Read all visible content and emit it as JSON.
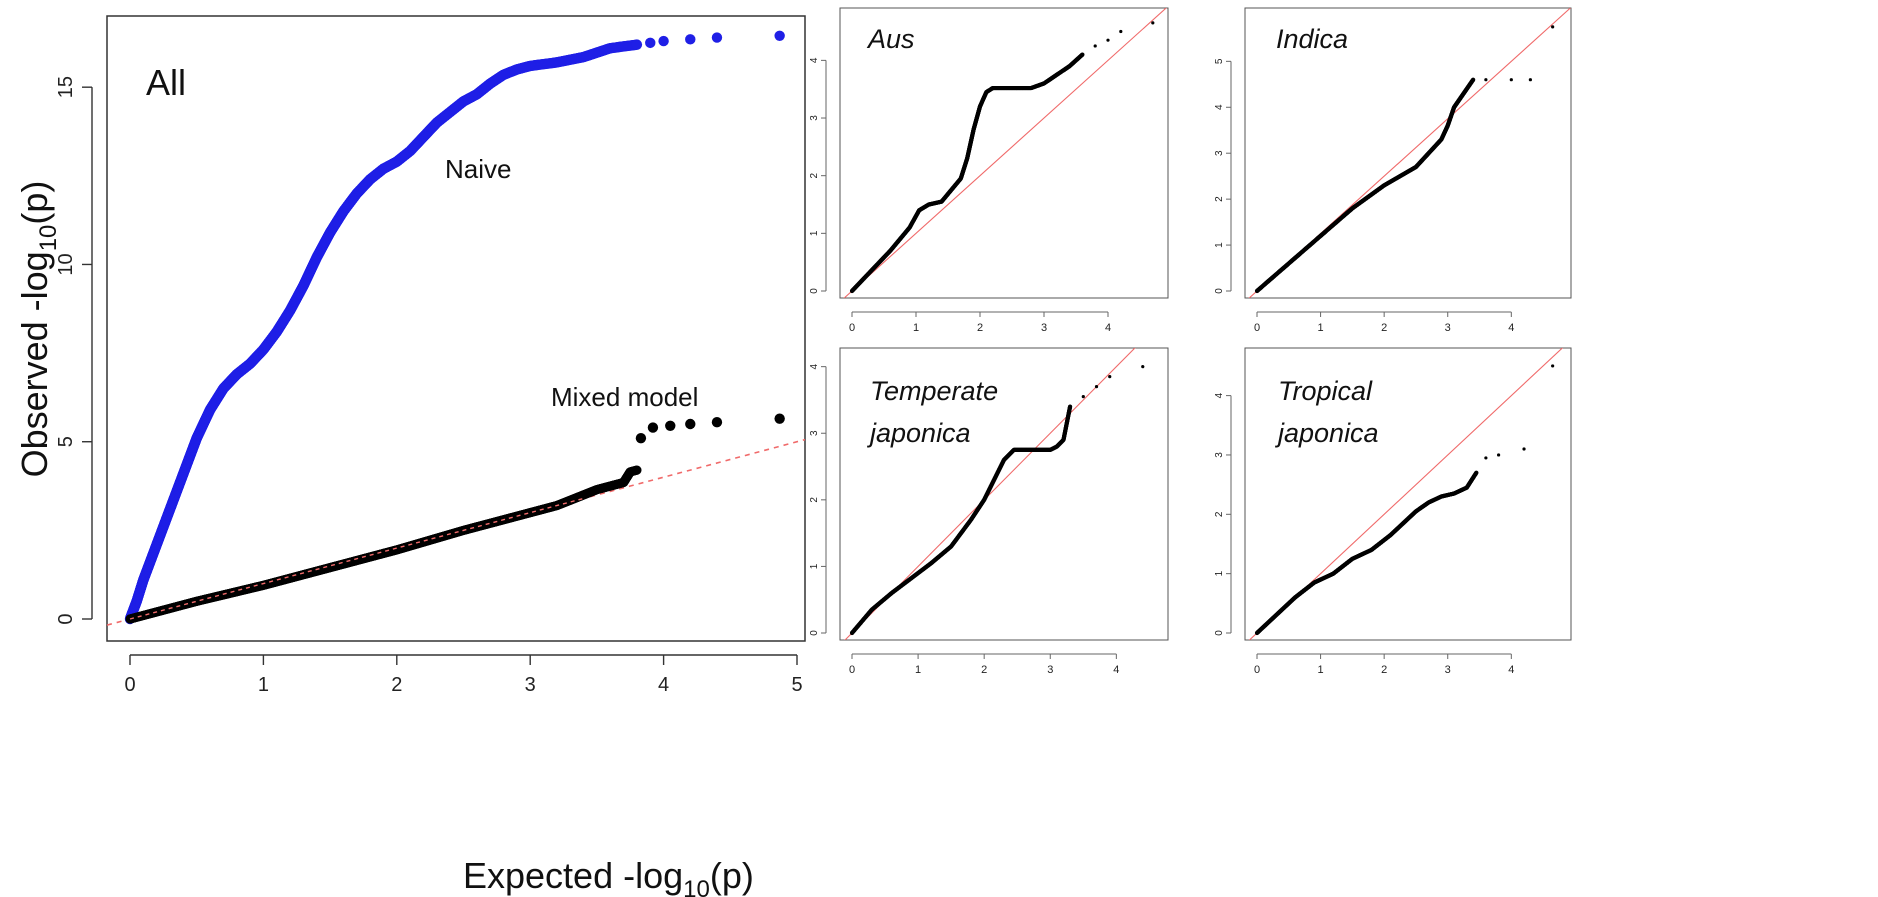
{
  "axis_titles": {
    "x_prefix": "Expected -log",
    "y_prefix": "Observed -log",
    "subscript": "10",
    "suffix": "(p)"
  },
  "colors": {
    "naive": "#1f1fe6",
    "mixed": "#000000",
    "reference_line": "#f06a6a",
    "frame": "#333333"
  },
  "chart_data": [
    {
      "type": "scatter",
      "panel": "main",
      "panel_label": "All",
      "xlim": [
        0,
        5
      ],
      "ylim": [
        0,
        16.5
      ],
      "x_ticks": [
        0,
        1,
        2,
        3,
        4,
        5
      ],
      "y_ticks": [
        0,
        5,
        10,
        15
      ],
      "reference_line": {
        "style": "dashed",
        "slope": 1
      },
      "annotations": [
        "Naive",
        "Mixed model"
      ],
      "series": [
        {
          "name": "Naive",
          "points": [
            [
              0,
              0
            ],
            [
              0.05,
              0.5
            ],
            [
              0.1,
              1.1
            ],
            [
              0.2,
              2.1
            ],
            [
              0.3,
              3.1
            ],
            [
              0.4,
              4.1
            ],
            [
              0.5,
              5.1
            ],
            [
              0.6,
              5.9
            ],
            [
              0.7,
              6.5
            ],
            [
              0.8,
              6.9
            ],
            [
              0.9,
              7.2
            ],
            [
              1.0,
              7.6
            ],
            [
              1.1,
              8.1
            ],
            [
              1.2,
              8.7
            ],
            [
              1.3,
              9.4
            ],
            [
              1.4,
              10.2
            ],
            [
              1.5,
              10.9
            ],
            [
              1.6,
              11.5
            ],
            [
              1.7,
              12.0
            ],
            [
              1.8,
              12.4
            ],
            [
              1.9,
              12.7
            ],
            [
              2.0,
              12.9
            ],
            [
              2.1,
              13.2
            ],
            [
              2.2,
              13.6
            ],
            [
              2.3,
              14.0
            ],
            [
              2.4,
              14.3
            ],
            [
              2.5,
              14.6
            ],
            [
              2.6,
              14.8
            ],
            [
              2.7,
              15.1
            ],
            [
              2.8,
              15.35
            ],
            [
              2.9,
              15.5
            ],
            [
              3.0,
              15.6
            ],
            [
              3.2,
              15.7
            ],
            [
              3.4,
              15.85
            ],
            [
              3.6,
              16.1
            ],
            [
              3.8,
              16.2
            ],
            [
              3.9,
              16.25
            ],
            [
              4.0,
              16.3
            ],
            [
              4.2,
              16.35
            ],
            [
              4.4,
              16.4
            ],
            [
              4.87,
              16.45
            ]
          ]
        },
        {
          "name": "Mixed model",
          "points": [
            [
              0,
              0
            ],
            [
              0.2,
              0.2
            ],
            [
              0.5,
              0.5
            ],
            [
              1.0,
              0.95
            ],
            [
              1.5,
              1.45
            ],
            [
              2.0,
              1.95
            ],
            [
              2.5,
              2.5
            ],
            [
              3.0,
              3.0
            ],
            [
              3.2,
              3.2
            ],
            [
              3.4,
              3.5
            ],
            [
              3.5,
              3.65
            ],
            [
              3.6,
              3.75
            ],
            [
              3.7,
              3.85
            ],
            [
              3.75,
              4.15
            ],
            [
              3.8,
              4.2
            ],
            [
              3.83,
              5.1
            ],
            [
              3.92,
              5.4
            ],
            [
              4.05,
              5.45
            ],
            [
              4.2,
              5.5
            ],
            [
              4.4,
              5.55
            ],
            [
              4.87,
              5.65
            ]
          ]
        }
      ]
    },
    {
      "type": "scatter",
      "panel": "Aus",
      "panel_label": "Aus",
      "xlim": [
        0,
        4.75
      ],
      "ylim": [
        0,
        4.7
      ],
      "x_ticks": [
        0,
        1,
        2,
        3,
        4
      ],
      "y_ticks": [
        0,
        1,
        2,
        3,
        4
      ],
      "reference_line": {
        "style": "solid",
        "slope": 1
      },
      "points": [
        [
          0,
          0
        ],
        [
          0.3,
          0.35
        ],
        [
          0.6,
          0.7
        ],
        [
          0.9,
          1.1
        ],
        [
          1.05,
          1.4
        ],
        [
          1.2,
          1.5
        ],
        [
          1.4,
          1.55
        ],
        [
          1.55,
          1.75
        ],
        [
          1.7,
          1.95
        ],
        [
          1.8,
          2.3
        ],
        [
          1.9,
          2.8
        ],
        [
          2.0,
          3.2
        ],
        [
          2.1,
          3.45
        ],
        [
          2.2,
          3.52
        ],
        [
          2.5,
          3.52
        ],
        [
          2.8,
          3.52
        ],
        [
          3.0,
          3.6
        ],
        [
          3.2,
          3.75
        ],
        [
          3.4,
          3.9
        ],
        [
          3.6,
          4.1
        ],
        [
          3.8,
          4.25
        ],
        [
          4.0,
          4.35
        ],
        [
          4.2,
          4.5
        ],
        [
          4.7,
          4.65
        ]
      ]
    },
    {
      "type": "scatter",
      "panel": "Indica",
      "panel_label": "Indica",
      "xlim": [
        0,
        4.75
      ],
      "ylim": [
        0,
        5.9
      ],
      "x_ticks": [
        0,
        1,
        2,
        3,
        4
      ],
      "y_ticks": [
        0,
        1,
        2,
        3,
        4,
        5
      ],
      "reference_line": {
        "style": "solid",
        "slope": 1.25
      },
      "points": [
        [
          0,
          0
        ],
        [
          0.5,
          0.6
        ],
        [
          1.0,
          1.2
        ],
        [
          1.5,
          1.8
        ],
        [
          2.0,
          2.3
        ],
        [
          2.5,
          2.7
        ],
        [
          2.7,
          3.0
        ],
        [
          2.9,
          3.3
        ],
        [
          3.0,
          3.6
        ],
        [
          3.1,
          4.0
        ],
        [
          3.3,
          4.4
        ],
        [
          3.4,
          4.6
        ],
        [
          3.6,
          4.6
        ],
        [
          4.0,
          4.6
        ],
        [
          4.3,
          4.6
        ],
        [
          4.65,
          5.75
        ]
      ]
    },
    {
      "type": "scatter",
      "panel": "Temperate japonica",
      "panel_label_lines": [
        "Temperate",
        "japonica"
      ],
      "xlim": [
        0,
        4.6
      ],
      "ylim": [
        0,
        4.1
      ],
      "x_ticks": [
        0,
        1,
        2,
        3,
        4
      ],
      "y_ticks": [
        0,
        1,
        2,
        3,
        4
      ],
      "reference_line": {
        "style": "solid",
        "slope": 1
      },
      "points": [
        [
          0,
          0
        ],
        [
          0.3,
          0.35
        ],
        [
          0.6,
          0.6
        ],
        [
          0.8,
          0.75
        ],
        [
          1.0,
          0.9
        ],
        [
          1.2,
          1.05
        ],
        [
          1.5,
          1.3
        ],
        [
          1.8,
          1.7
        ],
        [
          2.0,
          2.0
        ],
        [
          2.15,
          2.3
        ],
        [
          2.3,
          2.6
        ],
        [
          2.45,
          2.75
        ],
        [
          2.7,
          2.75
        ],
        [
          3.0,
          2.75
        ],
        [
          3.1,
          2.8
        ],
        [
          3.2,
          2.9
        ],
        [
          3.3,
          3.4
        ],
        [
          3.5,
          3.55
        ],
        [
          3.7,
          3.7
        ],
        [
          3.9,
          3.85
        ],
        [
          4.4,
          4.0
        ]
      ]
    },
    {
      "type": "scatter",
      "panel": "Tropical japonica",
      "panel_label_lines": [
        "Tropical",
        "japonica"
      ],
      "xlim": [
        0,
        4.75
      ],
      "ylim": [
        0,
        4.6
      ],
      "x_ticks": [
        0,
        1,
        2,
        3,
        4
      ],
      "y_ticks": [
        0,
        1,
        2,
        3,
        4
      ],
      "reference_line": {
        "style": "solid",
        "slope": 1
      },
      "points": [
        [
          0,
          0
        ],
        [
          0.3,
          0.3
        ],
        [
          0.6,
          0.6
        ],
        [
          0.9,
          0.85
        ],
        [
          1.2,
          1.0
        ],
        [
          1.5,
          1.25
        ],
        [
          1.8,
          1.4
        ],
        [
          2.1,
          1.65
        ],
        [
          2.3,
          1.85
        ],
        [
          2.5,
          2.05
        ],
        [
          2.7,
          2.2
        ],
        [
          2.9,
          2.3
        ],
        [
          3.1,
          2.35
        ],
        [
          3.3,
          2.45
        ],
        [
          3.45,
          2.7
        ],
        [
          3.6,
          2.95
        ],
        [
          3.8,
          3.0
        ],
        [
          4.2,
          3.1
        ],
        [
          4.65,
          4.5
        ]
      ]
    }
  ]
}
